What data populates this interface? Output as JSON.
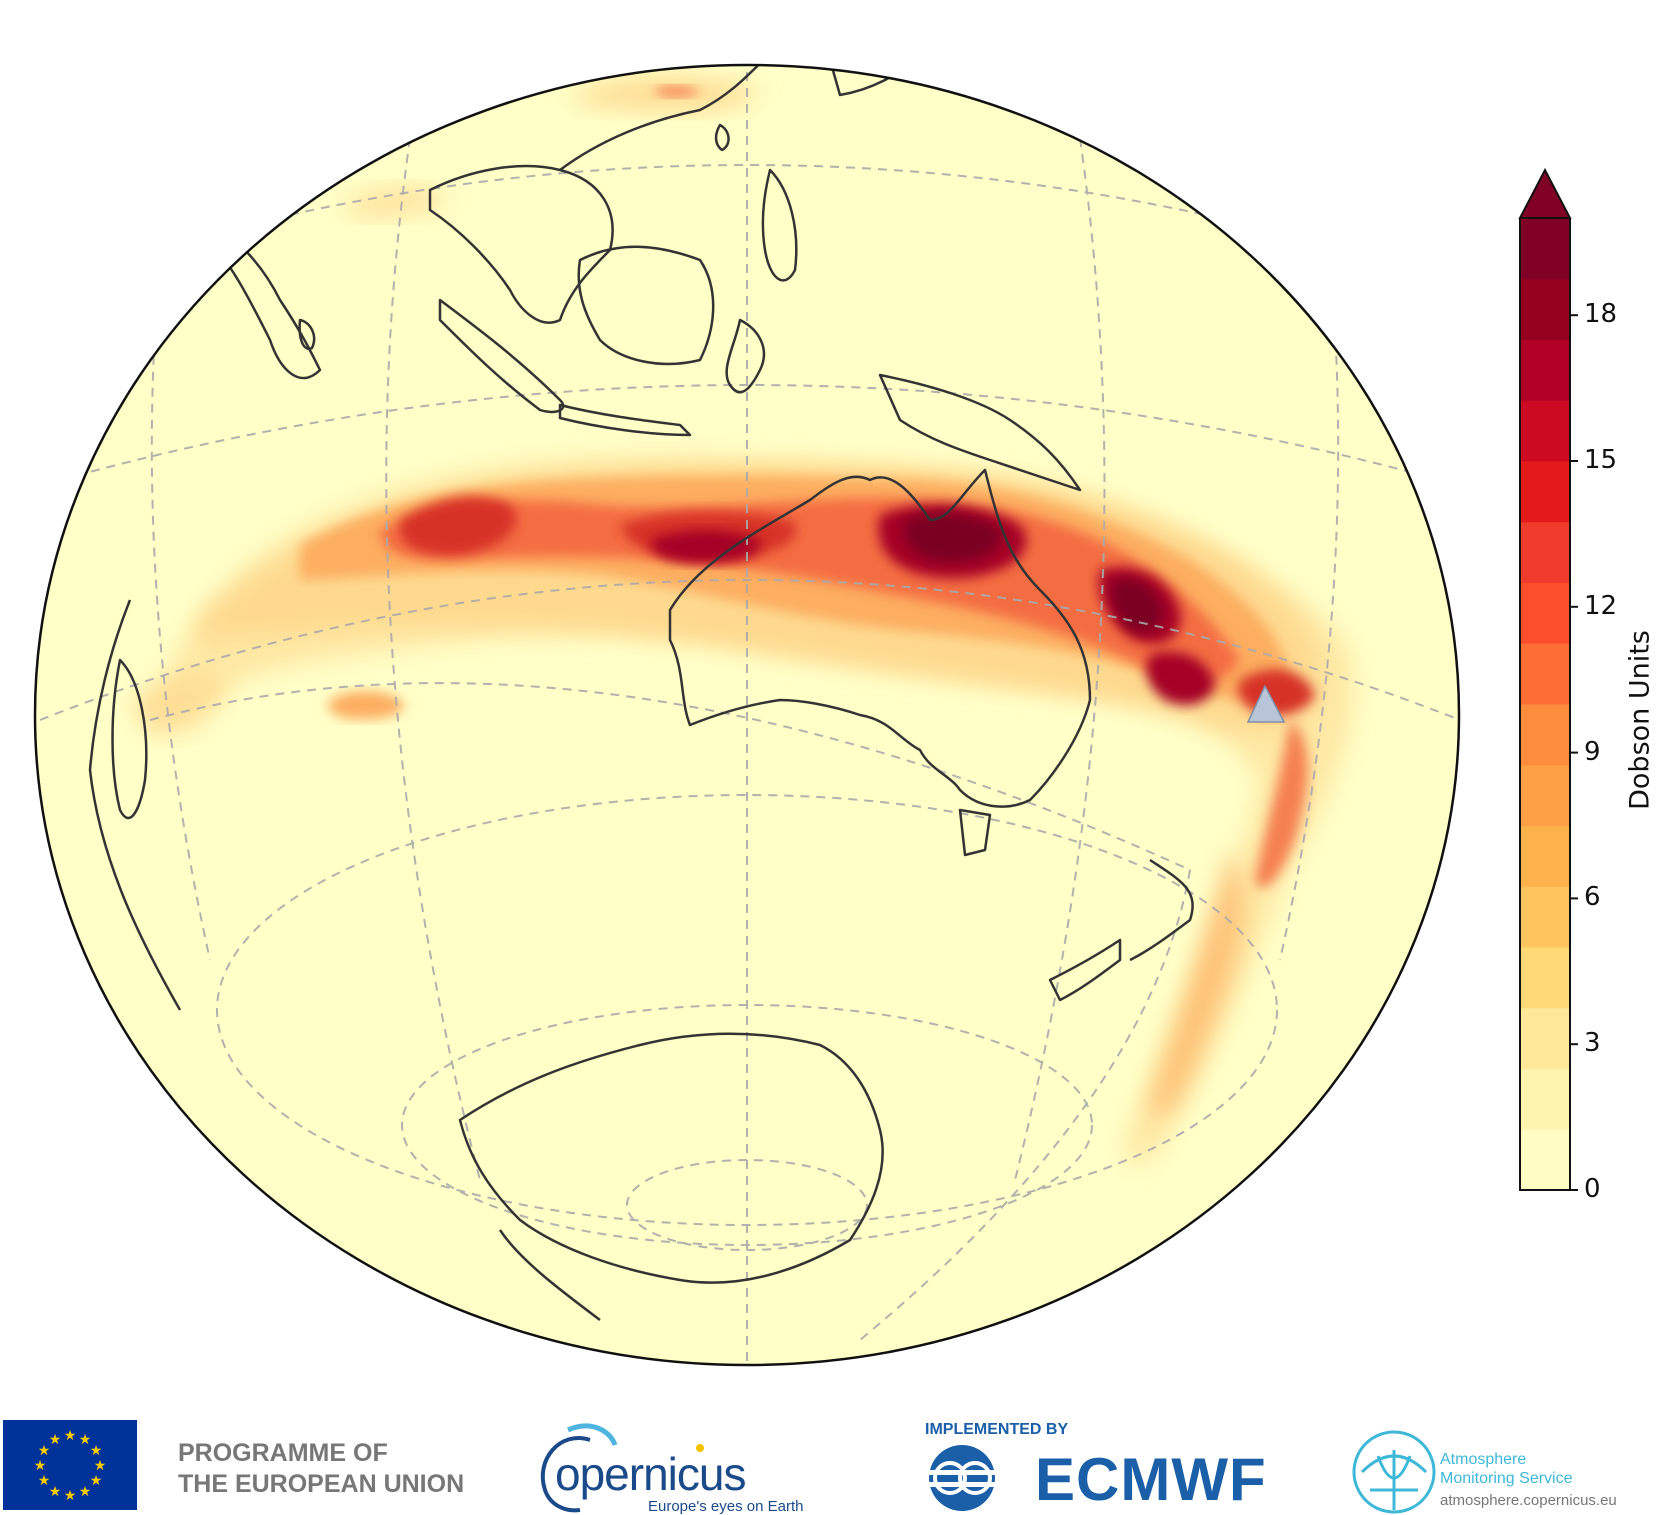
{
  "colorbar": {
    "title": "Dobson Units",
    "ticks": [
      0,
      3,
      6,
      9,
      12,
      15,
      18
    ],
    "vmin": 0,
    "vmax": 20,
    "extend": "max",
    "colors": [
      "#fffdc4",
      "#fff3b0",
      "#ffe897",
      "#fed976",
      "#fec55f",
      "#feb24c",
      "#fd9f44",
      "#fd8d3c",
      "#fc6e33",
      "#fc4e2a",
      "#ef3b2c",
      "#e31a1c",
      "#cc0b22",
      "#b10026",
      "#96001f",
      "#800026"
    ]
  },
  "map": {
    "background_color": "#ffffc8",
    "plume_colors": [
      "#fed98e",
      "#fdae61",
      "#f46d43",
      "#d73027",
      "#a50026",
      "#7a0020"
    ],
    "marker": "volcano-marker-triangle",
    "marker_color": "#b8c4d8"
  },
  "footer": {
    "programme_line1": "PROGRAMME OF",
    "programme_line2": "THE EUROPEAN UNION",
    "copernicus_word": "opernicus",
    "copernicus_tagline": "Europe's eyes on Earth",
    "implemented_by": "IMPLEMENTED BY",
    "ecmwf": "ECMWF",
    "ams_line1": "Atmosphere",
    "ams_line2": "Monitoring Service",
    "ams_url": "atmosphere.copernicus.eu"
  }
}
